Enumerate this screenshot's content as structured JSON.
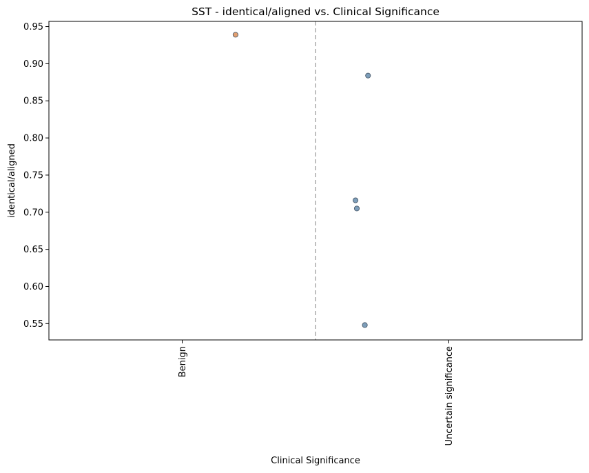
{
  "chart_data": {
    "type": "scatter",
    "title": "SST - identical/aligned vs. Clinical Significance",
    "xlabel": "Clinical Significance",
    "ylabel": "identical/aligned",
    "categories": [
      "Benign",
      "Uncertain significance"
    ],
    "ylim": [
      0.528,
      0.957
    ],
    "yticks": [
      0.55,
      0.6,
      0.65,
      0.7,
      0.75,
      0.8,
      0.85,
      0.9,
      0.95
    ],
    "ytick_labels": [
      "0.55",
      "0.60",
      "0.65",
      "0.70",
      "0.75",
      "0.80",
      "0.85",
      "0.90",
      "0.95"
    ],
    "xlim": [
      -0.5,
      1.5
    ],
    "divider_at": 0.5,
    "grid": false,
    "series": [
      {
        "name": "Benign",
        "color": "#e0955f",
        "points": [
          {
            "x": 0.2,
            "y": 0.939
          }
        ]
      },
      {
        "name": "Uncertain significance",
        "color": "#6f93b3",
        "points": [
          {
            "x": 0.697,
            "y": 0.884
          },
          {
            "x": 0.65,
            "y": 0.716
          },
          {
            "x": 0.655,
            "y": 0.705
          },
          {
            "x": 0.685,
            "y": 0.548
          }
        ]
      }
    ]
  }
}
